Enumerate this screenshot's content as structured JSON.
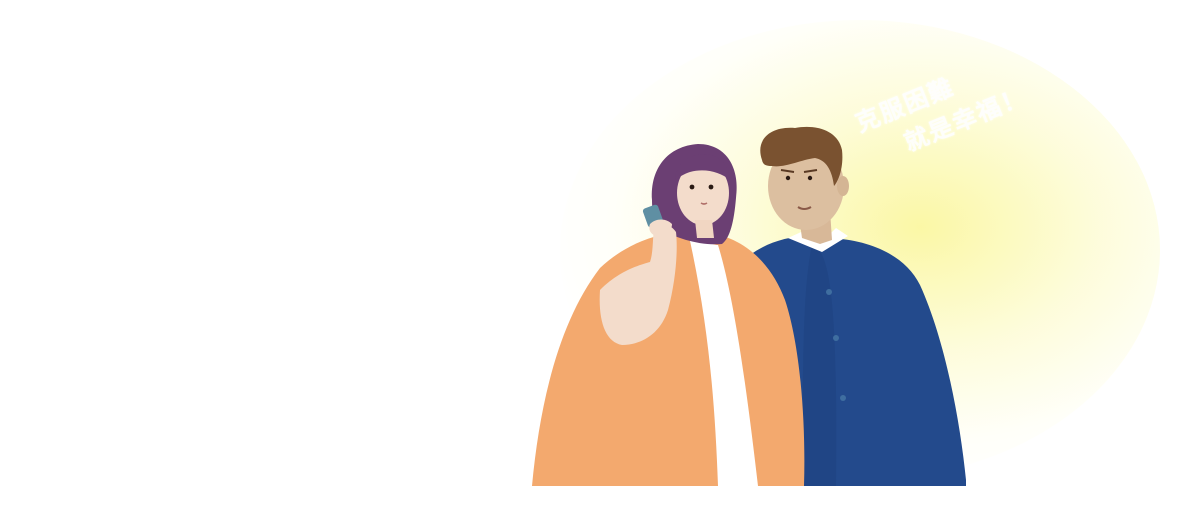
{
  "illustration": {
    "subject": "couple-with-phone",
    "colors": {
      "glow": "#f8f49a",
      "woman_coat": "#f3a96e",
      "woman_scarf": "#ffffff",
      "woman_hair": "#6b3f73",
      "skin": "#f2d8c4",
      "man_coat": "#234a8c",
      "man_hair": "#7a5230",
      "man_skin": "#dcbfa0",
      "phone": "#5f8fa3"
    }
  },
  "slogan": {
    "line1": "克服困難",
    "line2": "就是幸福！"
  }
}
